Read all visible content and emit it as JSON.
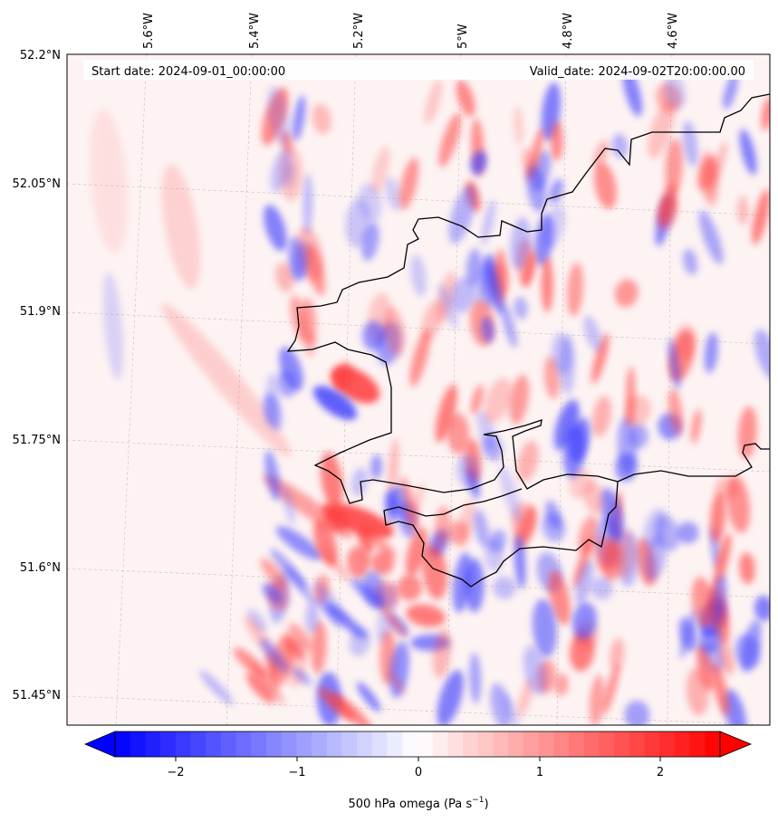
{
  "header": {
    "start_date": "Start date: 2024-09-01_00:00:00",
    "valid_date": "Valid_date: 2024-09-02T20:00:00.00"
  },
  "map": {
    "longitude_labels": [
      "5.6°W",
      "5.4°W",
      "5.2°W",
      "5°W",
      "4.8°W",
      "4.6°W"
    ],
    "latitude_labels": [
      "52.2°N",
      "52.05°N",
      "51.9°N",
      "51.75°N",
      "51.6°N",
      "51.45°N"
    ],
    "field": "500 hPa omega",
    "field_range": [
      -2.7,
      2.7
    ],
    "coastline_color": "#000000",
    "gridline_style": "dashed-gray"
  },
  "colorbar": {
    "ticks": [
      "−2",
      "−1",
      "0",
      "1",
      "2"
    ],
    "label": "500 hPa omega (Pa s",
    "label_exp": "−1",
    "label_close": ")",
    "colormap": "bwr",
    "min_color": "#0000ff",
    "mid_color": "#ffffff",
    "max_color": "#ff0000",
    "extend": "both"
  }
}
